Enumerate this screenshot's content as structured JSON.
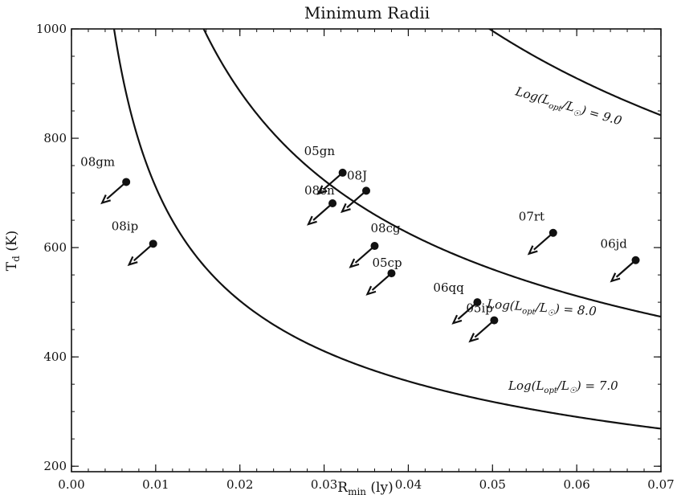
{
  "chart_data": {
    "type": "scatter",
    "title": "Minimum Radii",
    "xlabel": "R_min (ly)",
    "ylabel": "T_d (K)",
    "xlim": [
      0.0,
      0.07
    ],
    "ylim": [
      190,
      1000
    ],
    "x_ticks": [
      "0.00",
      "0.01",
      "0.02",
      "0.03",
      "0.04",
      "0.05",
      "0.06",
      "0.07"
    ],
    "y_ticks": [
      "200",
      "400",
      "600",
      "800",
      "1000"
    ],
    "grid": false,
    "legend": "none",
    "color": "#111111",
    "points": [
      {
        "label": "08gm",
        "x": 0.0065,
        "y": 720,
        "arrow": "lower-left"
      },
      {
        "label": "08ip",
        "x": 0.0097,
        "y": 607,
        "arrow": "lower-left"
      },
      {
        "label": "05gn",
        "x": 0.0322,
        "y": 737,
        "arrow": "lower-left"
      },
      {
        "label": "08J",
        "x": 0.035,
        "y": 704,
        "arrow": "lower-left"
      },
      {
        "label": "08en",
        "x": 0.031,
        "y": 681,
        "arrow": "lower-left"
      },
      {
        "label": "08cg",
        "x": 0.036,
        "y": 603,
        "arrow": "lower-left"
      },
      {
        "label": "05cp",
        "x": 0.038,
        "y": 553,
        "arrow": "lower-left"
      },
      {
        "label": "07rt",
        "x": 0.0572,
        "y": 627,
        "arrow": "lower-left"
      },
      {
        "label": "06jd",
        "x": 0.067,
        "y": 577,
        "arrow": "lower-left"
      },
      {
        "label": "06qq",
        "x": 0.0482,
        "y": 500,
        "arrow": "lower-left"
      },
      {
        "label": "05ip",
        "x": 0.0502,
        "y": 467,
        "arrow": "lower-left"
      }
    ],
    "curves": [
      {
        "label": "Log(L_opt/L_O) = 7.0",
        "log_lratio": 7.0
      },
      {
        "label": "Log(L_opt/L_O) = 8.0",
        "log_lratio": 8.0
      },
      {
        "label": "Log(L_opt/L_O) = 9.0",
        "log_lratio": 9.0
      }
    ]
  }
}
